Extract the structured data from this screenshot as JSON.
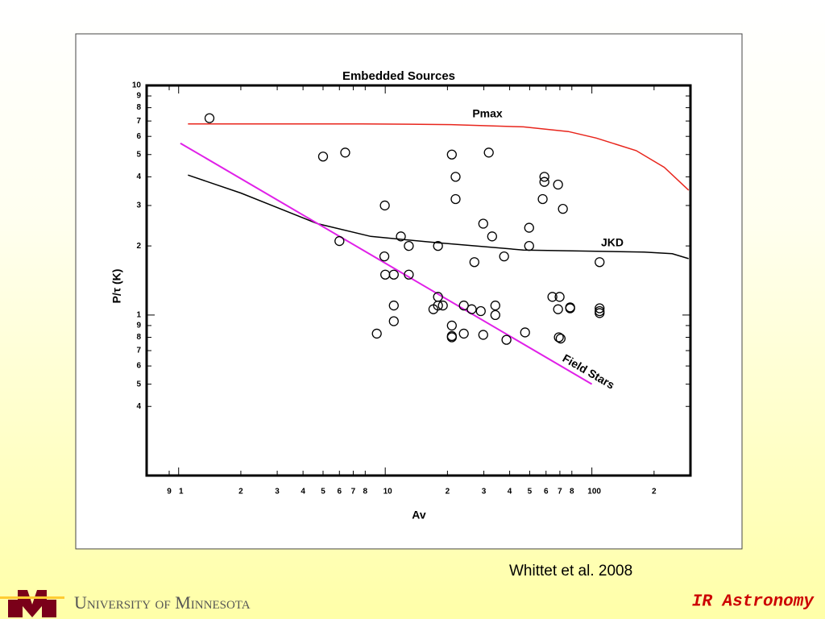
{
  "chart_data": {
    "type": "scatter",
    "title": "Embedded Sources",
    "xlabel": "Av",
    "ylabel": "P/τ (K)",
    "xscale": "log",
    "yscale": "log",
    "xlim": [
      0.7,
      300
    ],
    "ylim": [
      0.2,
      10
    ],
    "xticks": [
      {
        "value": 0.9,
        "label": "9"
      },
      1,
      2,
      3,
      4,
      5,
      6,
      7,
      8,
      10,
      {
        "value": 20,
        "label": "2"
      },
      {
        "value": 30,
        "label": "3"
      },
      {
        "value": 40,
        "label": "4"
      },
      {
        "value": 50,
        "label": "5"
      },
      {
        "value": 60,
        "label": "6"
      },
      {
        "value": 70,
        "label": "7"
      },
      {
        "value": 80,
        "label": "8"
      },
      100,
      {
        "value": 200,
        "label": "2"
      }
    ],
    "yticks": [
      10,
      9,
      8,
      7,
      6,
      5,
      4,
      3,
      2,
      1,
      {
        "value": 0.9,
        "label": "9"
      },
      {
        "value": 0.8,
        "label": "8"
      },
      {
        "value": 0.7,
        "label": "7"
      },
      {
        "value": 0.6,
        "label": "6"
      },
      {
        "value": 0.5,
        "label": "5"
      },
      {
        "value": 0.4,
        "label": "4"
      }
    ],
    "points": {
      "color": "#000000",
      "x": [
        1.41,
        5.0,
        6.4,
        21,
        31.7,
        21.9,
        21.9,
        58.9,
        58.9,
        68.6,
        57.8,
        72.4,
        9.95,
        29.8,
        32.9,
        49.7,
        49.7,
        11.9,
        13.0,
        18.0,
        6.0,
        9.9,
        37.6,
        27.0,
        109,
        10,
        11.0,
        13.0,
        18.0,
        64.4,
        69.8,
        11.0,
        18.0,
        19.0,
        17.1,
        24.0,
        26.2,
        29.0,
        34.1,
        34.1,
        68.6,
        78.5,
        78.5,
        109,
        109,
        109,
        11.0,
        9.1,
        21,
        21,
        21,
        24,
        29.8,
        38.6,
        47.5,
        69.2,
        70.6
      ],
      "y": [
        7.2,
        4.9,
        5.1,
        5.0,
        5.1,
        4.0,
        3.2,
        4.0,
        3.8,
        3.7,
        3.2,
        2.9,
        3.0,
        2.5,
        2.2,
        2.4,
        2.0,
        2.2,
        2.0,
        2.0,
        2.1,
        1.8,
        1.8,
        1.7,
        1.7,
        1.5,
        1.5,
        1.5,
        1.2,
        1.2,
        1.2,
        1.1,
        1.1,
        1.1,
        1.06,
        1.1,
        1.06,
        1.04,
        1.1,
        1.0,
        1.06,
        1.08,
        1.07,
        1.07,
        1.04,
        1.02,
        0.94,
        0.83,
        0.9,
        0.81,
        0.8,
        0.83,
        0.82,
        0.78,
        0.84,
        0.8,
        0.79
      ]
    },
    "lines": [
      {
        "name": "Pmax",
        "color": "#e8251c",
        "x": [
          1.11,
          7.7,
          20.8,
          46.6,
          77,
          105,
          164,
          224,
          294
        ],
        "y": [
          6.8,
          6.8,
          6.75,
          6.6,
          6.3,
          5.9,
          5.2,
          4.4,
          3.5
        ]
      },
      {
        "name": "JKD",
        "color": "#000000",
        "x": [
          1.11,
          2.0,
          4.7,
          8.5,
          17.4,
          46.6,
          179,
          245,
          294
        ],
        "y": [
          4.07,
          3.4,
          2.5,
          2.2,
          2.07,
          1.92,
          1.88,
          1.85,
          1.76
        ]
      },
      {
        "name": "Field Stars",
        "color": "#e020e8",
        "x": [
          1.02,
          100
        ],
        "y": [
          5.6,
          0.5
        ]
      }
    ]
  },
  "footer": {
    "citation": "Whittet et al. 2008",
    "university": "University of Minnesota",
    "course": "IR Astronomy"
  }
}
